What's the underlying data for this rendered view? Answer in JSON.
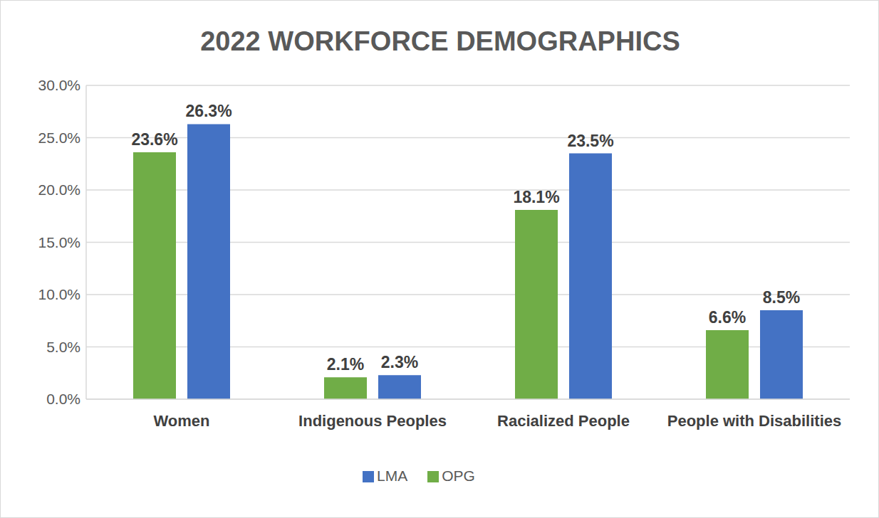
{
  "chart_data": {
    "type": "bar",
    "title": "2022 WORKFORCE DEMOGRAPHICS",
    "categories": [
      "Women",
      "Indigenous Peoples",
      "Racialized People",
      "People with Disabilities"
    ],
    "series": [
      {
        "name": "OPG",
        "color": "#70ad47",
        "values": [
          23.6,
          2.1,
          18.1,
          6.6
        ],
        "value_labels": [
          "23.6%",
          "2.1%",
          "18.1%",
          "6.6%"
        ]
      },
      {
        "name": "LMA",
        "color": "#4472c4",
        "values": [
          26.3,
          2.3,
          23.5,
          8.5
        ],
        "value_labels": [
          "26.3%",
          "2.3%",
          "23.5%",
          "8.5%"
        ]
      }
    ],
    "ylim": [
      0,
      30
    ],
    "yticks": [
      {
        "value": 0,
        "label": "0.0%"
      },
      {
        "value": 5,
        "label": "5.0%"
      },
      {
        "value": 10,
        "label": "10.0%"
      },
      {
        "value": 15,
        "label": "15.0%"
      },
      {
        "value": 20,
        "label": "20.0%"
      },
      {
        "value": 25,
        "label": "25.0%"
      },
      {
        "value": 30,
        "label": "30.0%"
      }
    ],
    "grid": true,
    "legend": "bottom",
    "data_labels": true
  }
}
